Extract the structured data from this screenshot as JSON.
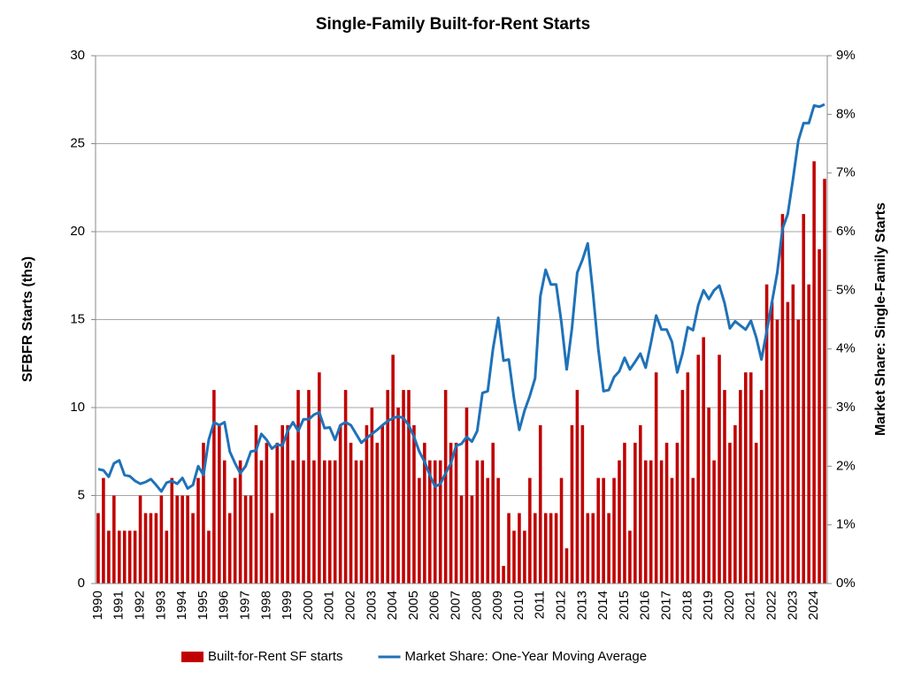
{
  "chart_data": {
    "type": "combo",
    "title": "Single-Family Built-for-Rent Starts",
    "y_label": "SFBFR Starts (ths)",
    "y2_label": "Market Share: Single-Family Starts",
    "categories": [
      "1990",
      null,
      null,
      null,
      "1991",
      null,
      null,
      null,
      "1992",
      null,
      null,
      null,
      "1993",
      null,
      null,
      null,
      "1994",
      null,
      null,
      null,
      "1995",
      null,
      null,
      null,
      "1996",
      null,
      null,
      null,
      "1997",
      null,
      null,
      null,
      "1998",
      null,
      null,
      null,
      "1999",
      null,
      null,
      null,
      "2000",
      null,
      null,
      null,
      "2001",
      null,
      null,
      null,
      "2002",
      null,
      null,
      null,
      "2003",
      null,
      null,
      null,
      "2004",
      null,
      null,
      null,
      "2005",
      null,
      null,
      null,
      "2006",
      null,
      null,
      null,
      "2007",
      null,
      null,
      null,
      "2008",
      null,
      null,
      null,
      "2009",
      null,
      null,
      null,
      "2010",
      null,
      null,
      null,
      "2011",
      null,
      null,
      null,
      "2012",
      null,
      null,
      null,
      "2013",
      null,
      null,
      null,
      "2014",
      null,
      null,
      null,
      "2015",
      null,
      null,
      null,
      "2016",
      null,
      null,
      null,
      "2017",
      null,
      null,
      null,
      "2018",
      null,
      null,
      null,
      "2019",
      null,
      null,
      null,
      "2020",
      null,
      null,
      null,
      "2021",
      null,
      null,
      null,
      "2022",
      null,
      null,
      null,
      "2023",
      null,
      null,
      null,
      "2024",
      null,
      null
    ],
    "series": [
      {
        "name": "Built-for-Rent SF starts",
        "type": "bar",
        "color": "#c00000",
        "values": [
          4,
          6,
          3,
          5,
          3,
          3,
          3,
          3,
          5,
          4,
          4,
          4,
          5,
          3,
          6,
          5,
          5,
          5,
          4,
          6,
          8,
          3,
          11,
          9,
          7,
          4,
          6,
          7,
          5,
          5,
          9,
          7,
          8,
          4,
          8,
          9,
          9,
          7,
          11,
          7,
          11,
          7,
          12,
          7,
          7,
          7,
          9,
          11,
          8,
          7,
          7,
          9,
          10,
          8,
          9,
          11,
          13,
          10,
          11,
          11,
          9,
          6,
          8,
          7,
          7,
          7,
          11,
          8,
          8,
          5,
          10,
          5,
          7,
          7,
          6,
          8,
          6,
          1,
          4,
          3,
          4,
          3,
          6,
          4,
          9,
          4,
          4,
          4,
          6,
          2,
          9,
          11,
          9,
          4,
          4,
          6,
          6,
          4,
          6,
          7,
          8,
          3,
          8,
          9,
          7,
          7,
          12,
          7,
          8,
          6,
          8,
          11,
          12,
          6,
          13,
          14,
          10,
          7,
          13,
          11,
          8,
          9,
          11,
          12,
          12,
          8,
          11,
          17,
          16,
          15,
          21,
          16,
          17,
          15,
          21,
          17,
          24,
          19,
          23
        ]
      },
      {
        "name": "Market Share: One-Year Moving Average",
        "type": "line",
        "axis": "y2",
        "color": "#1f72b8",
        "values": [
          1.95,
          1.93,
          1.82,
          2.05,
          2.1,
          1.85,
          1.83,
          1.75,
          1.7,
          1.73,
          1.78,
          1.68,
          1.57,
          1.72,
          1.75,
          1.7,
          1.8,
          1.62,
          1.68,
          2.0,
          1.85,
          2.45,
          2.75,
          2.7,
          2.75,
          2.25,
          2.05,
          1.88,
          2.0,
          2.25,
          2.27,
          2.55,
          2.45,
          2.3,
          2.37,
          2.35,
          2.6,
          2.75,
          2.6,
          2.8,
          2.8,
          2.88,
          2.92,
          2.65,
          2.66,
          2.45,
          2.7,
          2.75,
          2.7,
          2.55,
          2.4,
          2.48,
          2.55,
          2.62,
          2.7,
          2.77,
          2.82,
          2.85,
          2.82,
          2.7,
          2.5,
          2.25,
          2.08,
          1.85,
          1.65,
          1.7,
          1.88,
          2.05,
          2.35,
          2.38,
          2.5,
          2.42,
          2.6,
          3.25,
          3.28,
          4.0,
          4.53,
          3.8,
          3.82,
          3.15,
          2.62,
          2.95,
          3.2,
          3.5,
          4.9,
          5.35,
          5.1,
          5.1,
          4.45,
          3.65,
          4.35,
          5.3,
          5.52,
          5.8,
          4.95,
          4.0,
          3.28,
          3.3,
          3.52,
          3.62,
          3.85,
          3.65,
          3.78,
          3.92,
          3.68,
          4.1,
          4.57,
          4.33,
          4.33,
          4.12,
          3.6,
          3.92,
          4.37,
          4.32,
          4.75,
          5.0,
          4.85,
          5.0,
          5.08,
          4.78,
          4.35,
          4.47,
          4.4,
          4.33,
          4.48,
          4.2,
          3.82,
          4.3,
          4.8,
          5.3,
          6.05,
          6.3,
          6.9,
          7.55,
          7.85,
          7.85,
          8.15,
          8.13,
          8.17
        ]
      }
    ],
    "ylim": [
      0,
      30
    ],
    "yticks": [
      0,
      5,
      10,
      15,
      20,
      25,
      30
    ],
    "y2lim": [
      0,
      9
    ],
    "y2ticks": [
      {
        "value": 0,
        "label": "0%"
      },
      {
        "value": 1,
        "label": "1%"
      },
      {
        "value": 2,
        "label": "2%"
      },
      {
        "value": 3,
        "label": "3%"
      },
      {
        "value": 4,
        "label": "4%"
      },
      {
        "value": 5,
        "label": "5%"
      },
      {
        "value": 6,
        "label": "6%"
      },
      {
        "value": 7,
        "label": "7%"
      },
      {
        "value": 8,
        "label": "8%"
      },
      {
        "value": 9,
        "label": "9%"
      }
    ],
    "grid": true,
    "legend": "bottom"
  }
}
